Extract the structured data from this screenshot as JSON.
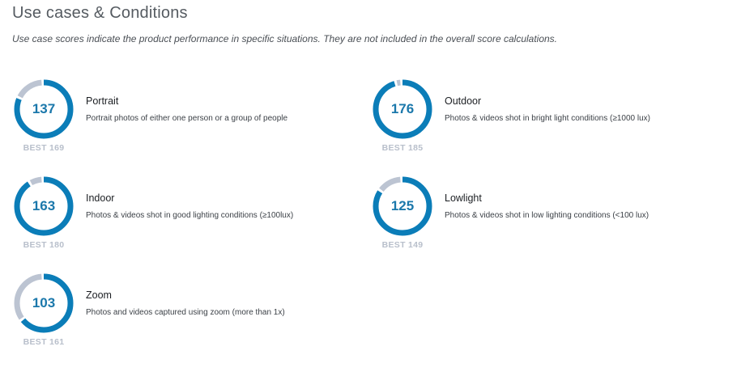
{
  "section": {
    "title": "Use cases & Conditions",
    "note": "Use case scores indicate the product performance in specific situations. They are not included in the overall score calculations."
  },
  "colors": {
    "gauge_fill": "#0b7db8",
    "gauge_track": "#bcc4d2",
    "score_text": "#1b78ab",
    "best_text": "#b8bfcb"
  },
  "use_cases": [
    {
      "name": "Portrait",
      "description": "Portrait photos of either one person or a group of people",
      "score": "137",
      "best": "BEST 169",
      "score_value": 137,
      "best_value": 169
    },
    {
      "name": "Outdoor",
      "description": "Photos & videos shot in bright light conditions (≥1000 lux)",
      "score": "176",
      "best": "BEST 185",
      "score_value": 176,
      "best_value": 185
    },
    {
      "name": "Indoor",
      "description": "Photos & videos shot in good lighting conditions (≥100lux)",
      "score": "163",
      "best": "BEST 180",
      "score_value": 163,
      "best_value": 180
    },
    {
      "name": "Lowlight",
      "description": "Photos & videos shot in low lighting conditions (<100 lux)",
      "score": "125",
      "best": "BEST 149",
      "score_value": 125,
      "best_value": 149
    },
    {
      "name": "Zoom",
      "description": "Photos and videos captured using zoom (more than 1x)",
      "score": "103",
      "best": "BEST 161",
      "score_value": 103,
      "best_value": 161
    }
  ]
}
